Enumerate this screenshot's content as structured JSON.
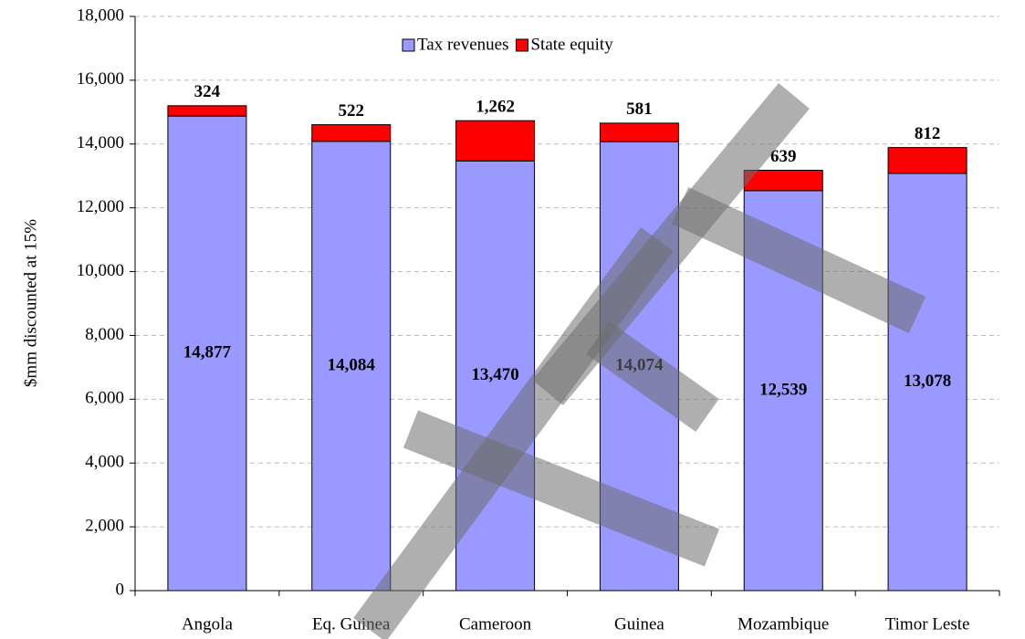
{
  "chart_data": {
    "type": "stacked_bar",
    "ylabel": "$mm discounted at 15%",
    "categories": [
      "Angola",
      "Eq. Guinea",
      "Cameroon",
      "Guinea",
      "Mozambique",
      "Timor Leste"
    ],
    "series": [
      {
        "name": "Tax revenues",
        "color": "#9999ff",
        "values": [
          14877,
          14084,
          13470,
          14074,
          12539,
          13078
        ],
        "value_labels": [
          "14,877",
          "14,084",
          "13,470",
          "14,074",
          "12,539",
          "13,078"
        ]
      },
      {
        "name": "State equity",
        "color": "#ff0000",
        "values": [
          324,
          522,
          1262,
          581,
          639,
          812
        ],
        "value_labels": [
          "324",
          "522",
          "1,262",
          "581",
          "639",
          "812"
        ]
      }
    ],
    "ylim": [
      0,
      18000
    ],
    "yticks": [
      0,
      {
        "value": 2000,
        "label": "2,000"
      },
      {
        "value": 4000,
        "label": "4,000"
      },
      {
        "value": 6000,
        "label": "6,000"
      },
      {
        "value": 8000,
        "label": "8,000"
      },
      {
        "value": 10000,
        "label": "10,000"
      },
      {
        "value": 12000,
        "label": "12,000"
      },
      {
        "value": 14000,
        "label": "14,000"
      },
      {
        "value": 16000,
        "label": "16,000"
      },
      {
        "value": 18000,
        "label": "18,000"
      }
    ],
    "grid": true,
    "legend": "top"
  }
}
